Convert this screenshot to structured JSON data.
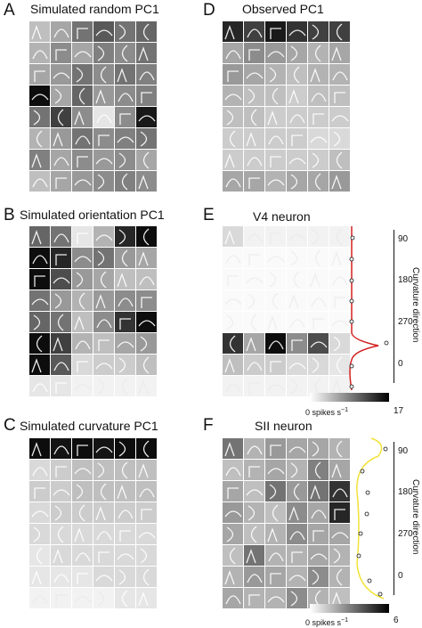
{
  "panels": {
    "A": {
      "letter": "A",
      "title": "Simulated random PC1"
    },
    "B": {
      "letter": "B",
      "title": "Simulated orientation PC1"
    },
    "C": {
      "letter": "C",
      "title": "Simulated curvature PC1"
    },
    "D": {
      "letter": "D",
      "title": "Observed PC1"
    },
    "E": {
      "letter": "E",
      "title": "V4 neuron"
    },
    "F": {
      "letter": "F",
      "title": "SII neuron"
    }
  },
  "side_axis": {
    "title": "Curvature direction",
    "ticks": [
      "90",
      "180",
      "270",
      "0"
    ]
  },
  "colorbars": {
    "E": {
      "min_label": "0 spikes s",
      "exp": "−1",
      "max_label": "17"
    },
    "F": {
      "min_label": "0 spikes s",
      "exp": "−1",
      "max_label": "6"
    }
  },
  "colors": {
    "line_E": "#d42020",
    "line_F": "#f2e23a"
  }
}
